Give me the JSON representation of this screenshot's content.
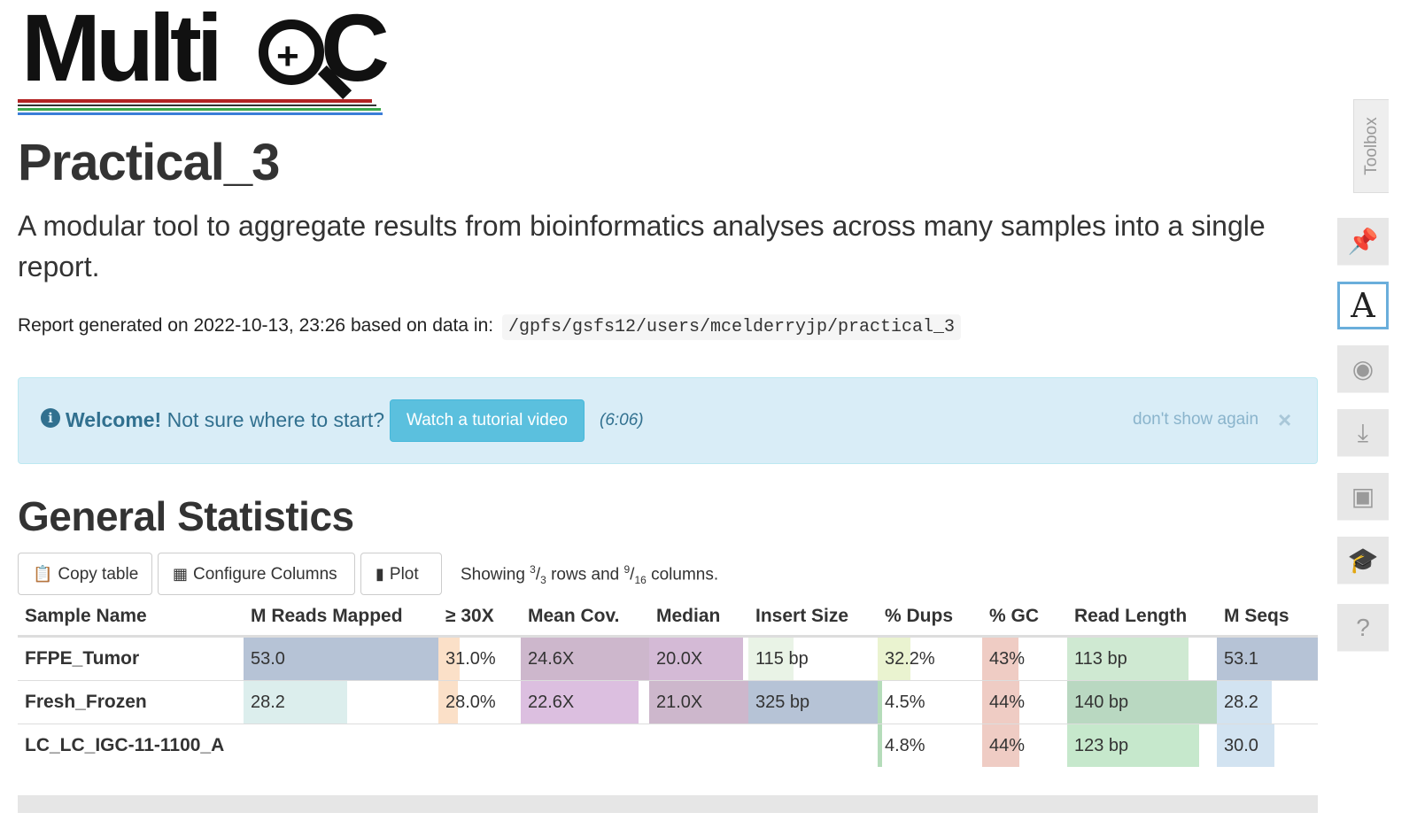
{
  "logo": {
    "text_main": "Multi",
    "text_end": "C",
    "colors": [
      "#b22222",
      "#333333",
      "#3aa84a",
      "#3b7dd8"
    ]
  },
  "report": {
    "title": "Practical_3",
    "description": "A modular tool to aggregate results from bioinformatics analyses across many samples into a single report.",
    "generated_prefix": "Report generated on 2022-10-13, 23:26 based on data in:",
    "data_path": "/gpfs/gsfs12/users/mcelderryjp/practical_3"
  },
  "welcome": {
    "info_icon": "info-circle-icon",
    "bold": "Welcome!",
    "text": "Not sure where to start?",
    "button_label": "Watch a tutorial video",
    "duration": "(6:06)",
    "dont_show": "don't show again",
    "close": "×"
  },
  "general_stats": {
    "title": "General Statistics",
    "buttons": {
      "copy": "Copy table",
      "configure": "Configure Columns",
      "plot": "Plot"
    },
    "showing": {
      "prefix": "Showing ",
      "rows_shown": "3",
      "rows_total": "3",
      "mid": " rows and ",
      "cols_shown": "9",
      "cols_total": "16",
      "suffix": " columns."
    },
    "columns": [
      "Sample Name",
      "M Reads Mapped",
      "≥ 30X",
      "Mean Cov.",
      "Median",
      "Insert Size",
      "% Dups",
      "% GC",
      "Read Length",
      "M Seqs"
    ],
    "rows": [
      {
        "sample": "FFPE_Tumor",
        "cells": [
          {
            "text": "53.0",
            "fill": 1.0,
            "color": "#b6c3d6"
          },
          {
            "text": "31.0%",
            "fill": 0.26,
            "color": "#fbe0c8"
          },
          {
            "text": "24.6X",
            "fill": 1.0,
            "color": "#cdb7cc"
          },
          {
            "text": "20.0X",
            "fill": 0.95,
            "color": "#d4bad6"
          },
          {
            "text": "115 bp",
            "fill": 0.35,
            "color": "#e9f3e6"
          },
          {
            "text": "32.2%",
            "fill": 0.31,
            "color": "#eaf3d0"
          },
          {
            "text": "43%",
            "fill": 0.43,
            "color": "#efccc4"
          },
          {
            "text": "113 bp",
            "fill": 0.81,
            "color": "#cfe9d2"
          },
          {
            "text": "53.1",
            "fill": 1.0,
            "color": "#b6c3d6"
          }
        ]
      },
      {
        "sample": "Fresh_Frozen",
        "cells": [
          {
            "text": "28.2",
            "fill": 0.53,
            "color": "#dceeed"
          },
          {
            "text": "28.0%",
            "fill": 0.24,
            "color": "#fbe0c8"
          },
          {
            "text": "22.6X",
            "fill": 0.92,
            "color": "#dcbfe0"
          },
          {
            "text": "21.0X",
            "fill": 1.0,
            "color": "#cdb7cc"
          },
          {
            "text": "325 bp",
            "fill": 1.0,
            "color": "#b6c3d6"
          },
          {
            "text": "4.5%",
            "fill": 0.04,
            "color": "#b5dcba"
          },
          {
            "text": "44%",
            "fill": 0.44,
            "color": "#efccc4"
          },
          {
            "text": "140 bp",
            "fill": 1.0,
            "color": "#b9d8c1"
          },
          {
            "text": "28.2",
            "fill": 0.54,
            "color": "#d2e3f1"
          }
        ]
      },
      {
        "sample": "LC_LC_IGC-11-1100_A",
        "cells": [
          {
            "text": "",
            "fill": 0,
            "color": "#ffffff"
          },
          {
            "text": "",
            "fill": 0,
            "color": "#ffffff"
          },
          {
            "text": "",
            "fill": 0,
            "color": "#ffffff"
          },
          {
            "text": "",
            "fill": 0,
            "color": "#ffffff"
          },
          {
            "text": "",
            "fill": 0,
            "color": "#ffffff"
          },
          {
            "text": "4.8%",
            "fill": 0.04,
            "color": "#b5dcba"
          },
          {
            "text": "44%",
            "fill": 0.44,
            "color": "#efccc4"
          },
          {
            "text": "123 bp",
            "fill": 0.88,
            "color": "#c6e8cc"
          },
          {
            "text": "30.0",
            "fill": 0.57,
            "color": "#d2e3f1"
          }
        ]
      }
    ]
  },
  "toolbox": {
    "tab_label": "Toolbox",
    "buttons": [
      {
        "name": "pin-icon",
        "glyph": "📌"
      },
      {
        "name": "highlight-icon",
        "glyph": "A",
        "active": true
      },
      {
        "name": "hide-eye-icon",
        "glyph": "◉"
      },
      {
        "name": "download-icon",
        "glyph": "⤓"
      },
      {
        "name": "save-icon",
        "glyph": "▣"
      },
      {
        "name": "graduation-cap-icon",
        "glyph": "🎓"
      },
      {
        "name": "help-icon",
        "glyph": "?"
      }
    ]
  }
}
